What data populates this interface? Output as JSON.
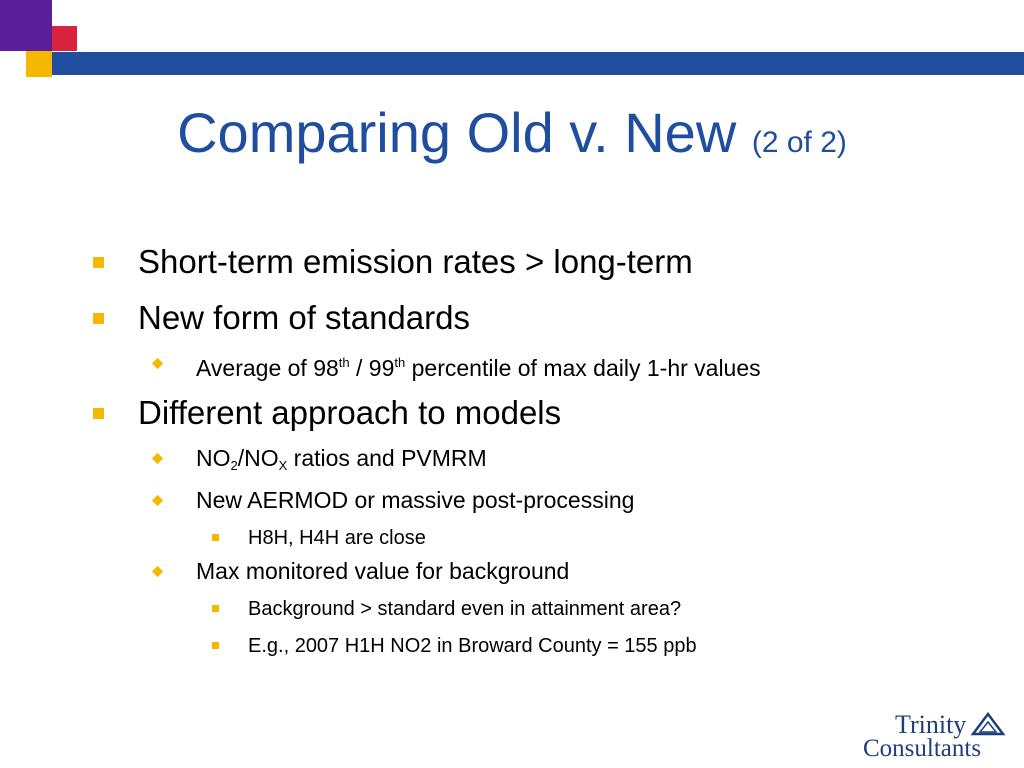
{
  "colors": {
    "title": "#1f4e9e",
    "bar": "#1f4e9e",
    "purple": "#5b1f9a",
    "red": "#d9223e",
    "gold": "#f5b700",
    "bullet": "#f5b700",
    "logo": "#1f3f7a"
  },
  "title": {
    "main": "Comparing Old v. New ",
    "sub": "(2 of 2)"
  },
  "bullets": {
    "b1": "Short-term emission rates > long-term",
    "b2": "New form of standards",
    "b2_1": {
      "part1": "Average of 98",
      "sup1": "th",
      "part2": " / 99",
      "sup2": "th",
      "part3": " percentile of max daily 1-hr values"
    },
    "b3": "Different approach to models",
    "b3_1": {
      "part1": "NO",
      "sub1": "2",
      "part2": "/NO",
      "sub2": "X",
      "part3": " ratios and PVMRM"
    },
    "b3_2": "New AERMOD or massive post-processing",
    "b3_2_1": "H8H, H4H are close",
    "b3_3": "Max monitored value for background",
    "b3_3_1": "Background > standard even in attainment area?",
    "b3_3_2": "E.g., 2007 H1H NO2 in Broward County = 155 ppb"
  },
  "logo": {
    "line1": "Trinity",
    "line2": "Consultants"
  }
}
